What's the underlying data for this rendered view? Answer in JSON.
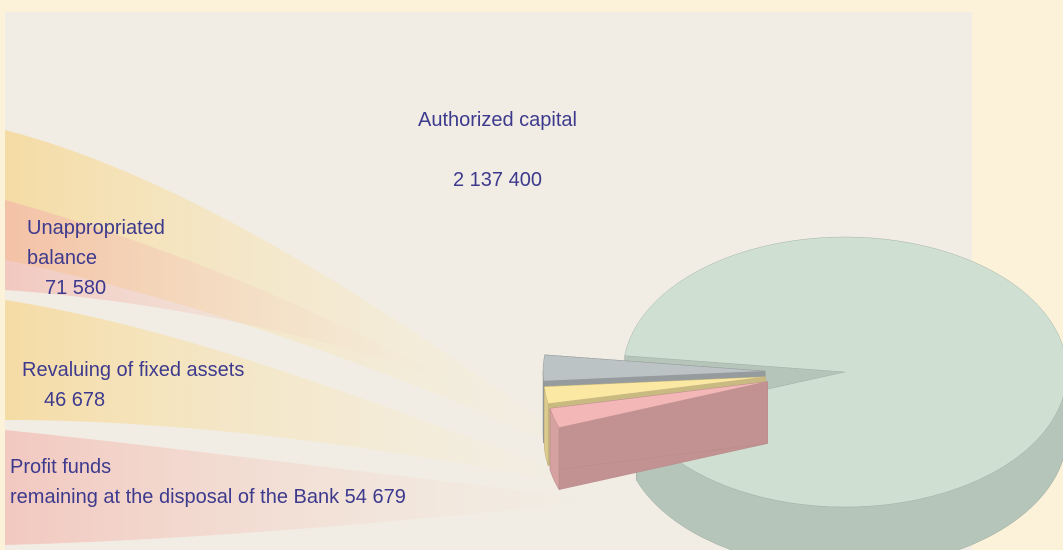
{
  "chart_data": {
    "type": "pie3d",
    "categories": [
      "Authorized capital",
      "Unappropriated\nbalance",
      "Revaluing of fixed assets",
      "Profit funds\nremaining at the disposal of the Bank"
    ],
    "values": [
      2137400,
      71580,
      46678,
      54679
    ],
    "value_labels": [
      "2 137 400",
      "71 580",
      "46 678",
      "54 679"
    ],
    "colors": [
      "#cfe0d2",
      "#bcc3c4",
      "#fbe8a2",
      "#f3b7b7"
    ]
  }
}
